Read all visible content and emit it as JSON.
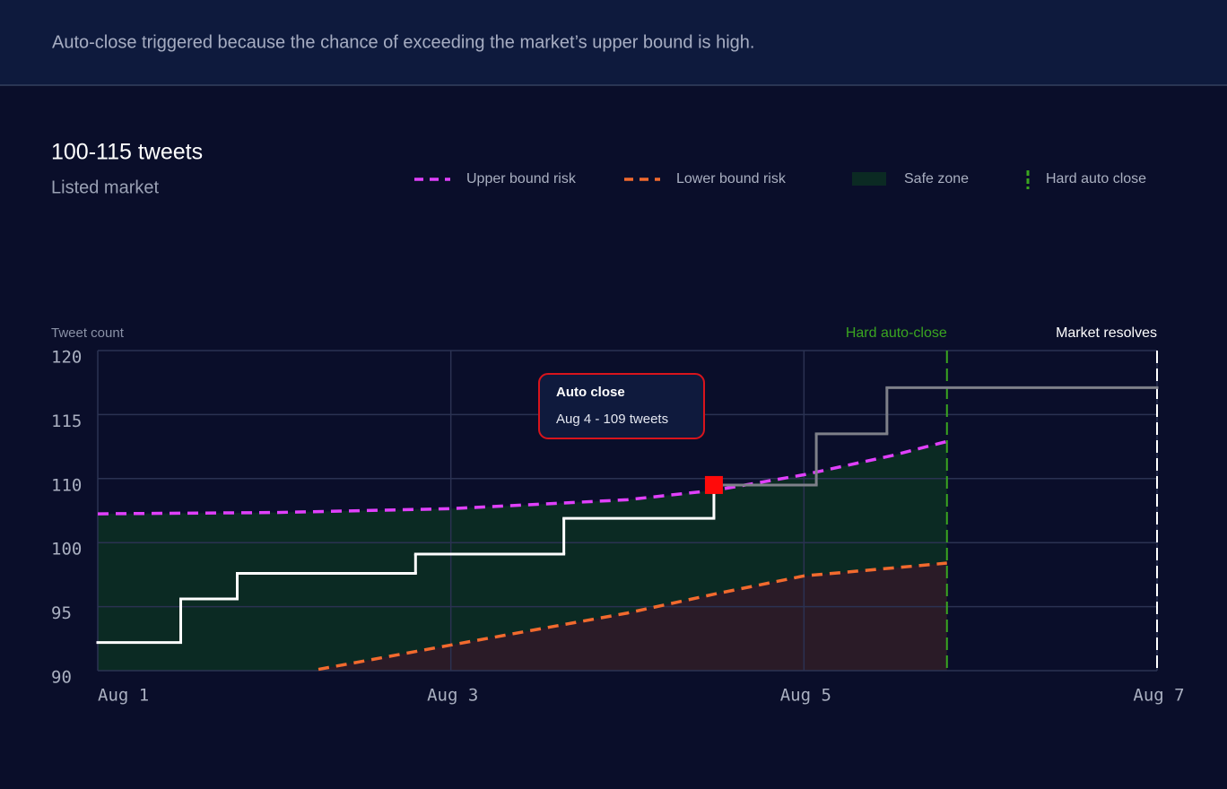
{
  "header": {
    "text": "Auto-close  triggered because the chance of exceeding the market’s upper bound is high."
  },
  "chart_data": {
    "type": "step",
    "title": "100-115 tweets",
    "subtitle": "Listed market",
    "ylabel": "Tweet count",
    "xlim": [
      1,
      7
    ],
    "xticks": [
      {
        "value": 1,
        "label": "Aug 1"
      },
      {
        "value": 3,
        "label": "Aug 3"
      },
      {
        "value": 5,
        "label": "Aug 5"
      },
      {
        "value": 7,
        "label": "Aug 7"
      }
    ],
    "ylim": [
      90,
      120
    ],
    "yticks": [
      90,
      95,
      100,
      110,
      115,
      120
    ],
    "grid": true,
    "series": [
      {
        "name": "Upper bound risk",
        "color": "#e040fb",
        "x": [
          1,
          2,
          3,
          4,
          4.5,
          5,
          5.5,
          5.81
        ],
        "values": [
          104.5,
          104.7,
          105.3,
          106.7,
          108.2,
          110.3,
          111.8,
          112.9
        ]
      },
      {
        "name": "Lower bound risk",
        "color": "#f26a2e",
        "fill": "#2a1b27",
        "x": [
          2.25,
          3,
          4,
          4.5,
          5,
          5.81
        ],
        "values": [
          90.1,
          92.0,
          94.5,
          96.0,
          97.4,
          98.4
        ]
      }
    ],
    "safe_zone": {
      "name": "Safe zone",
      "color": "#0b2a23"
    },
    "tweet_steps": [
      {
        "color": "#ffffff",
        "x": [
          1,
          1.47,
          1.79,
          2.8,
          3.64,
          4.49
        ],
        "values": [
          92.2,
          95.6,
          97.6,
          99.1,
          103.8,
          109
        ]
      },
      {
        "color": "#7e8089",
        "x": [
          4.49,
          5.07,
          5.47,
          7
        ],
        "values": [
          109,
          113.5,
          117.1,
          117.1
        ]
      }
    ],
    "events": [
      {
        "label": "Hard auto-close",
        "legend": "Hard auto close",
        "x": 5.81,
        "color": "#3aa520"
      },
      {
        "label": "Market resolves",
        "x": 7,
        "color": "#ffffff"
      }
    ],
    "marker": {
      "x": 4.49,
      "y": 109,
      "color": "#ff0a0a"
    },
    "tooltip": {
      "title": "Auto close",
      "text": "Aug 4 - 109 tweets"
    }
  }
}
